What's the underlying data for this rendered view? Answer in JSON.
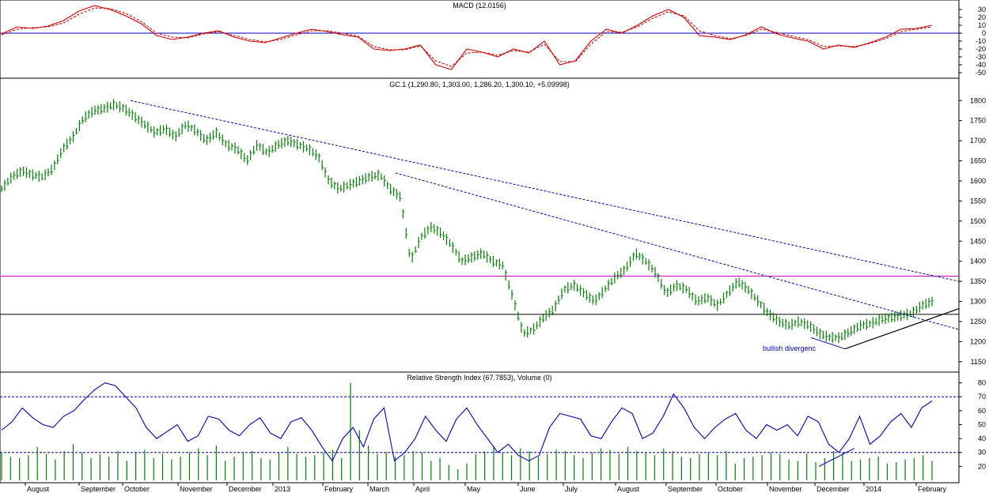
{
  "chart_data": [
    {
      "type": "line",
      "title": "MACD (12.0156)",
      "ylim": [
        -55,
        40
      ],
      "y_ticks": [
        30,
        20,
        10,
        0,
        -10,
        -20,
        -30,
        -40,
        -50
      ],
      "zero_line": 0,
      "series": [
        {
          "values": [
            -1,
            8,
            6,
            9,
            16,
            28,
            35,
            30,
            22,
            12,
            -3,
            -8,
            -5,
            0,
            3,
            -5,
            -10,
            -12,
            -6,
            0,
            5,
            2,
            -2,
            -5,
            -20,
            -22,
            -20,
            -15,
            -40,
            -46,
            -20,
            -24,
            -30,
            -20,
            -25,
            -10,
            -40,
            -35,
            -10,
            5,
            0,
            10,
            22,
            30,
            20,
            -3,
            -5,
            -8,
            -2,
            8,
            -1,
            -6,
            -10,
            -20,
            -15,
            -18,
            -12,
            -5,
            5,
            6,
            10
          ]
        },
        {
          "values": [
            -2,
            5,
            7,
            8,
            13,
            24,
            32,
            31,
            25,
            15,
            0,
            -5,
            -6,
            -1,
            2,
            -3,
            -8,
            -11,
            -8,
            -2,
            3,
            3,
            0,
            -4,
            -17,
            -21,
            -21,
            -16,
            -35,
            -42,
            -25,
            -24,
            -28,
            -22,
            -24,
            -14,
            -36,
            -36,
            -14,
            2,
            1,
            8,
            19,
            27,
            22,
            3,
            -3,
            -7,
            -3,
            5,
            1,
            -4,
            -8,
            -17,
            -16,
            -17,
            -13,
            -7,
            2,
            5,
            8
          ]
        }
      ]
    },
    {
      "type": "line",
      "title": "GC.1 (1,290.80, 1,303.00, 1,286.20, 1,300.10, +5.09998)",
      "ylim": [
        1130,
        1830
      ],
      "y_ticks": [
        1800,
        1750,
        1700,
        1650,
        1600,
        1550,
        1500,
        1450,
        1400,
        1350,
        1300,
        1250,
        1200,
        1150
      ],
      "horizontal_levels": [
        1363,
        1268
      ],
      "annotation": "bullish divergenc",
      "series": [
        {
          "values": [
            1580,
            1610,
            1625,
            1615,
            1610,
            1630,
            1680,
            1710,
            1755,
            1775,
            1780,
            1790,
            1780,
            1760,
            1740,
            1720,
            1730,
            1710,
            1740,
            1725,
            1700,
            1720,
            1690,
            1680,
            1650,
            1690,
            1670,
            1690,
            1700,
            1690,
            1680,
            1660,
            1600,
            1580,
            1590,
            1600,
            1610,
            1615,
            1580,
            1560,
            1400,
            1460,
            1485,
            1470,
            1440,
            1400,
            1410,
            1420,
            1400,
            1390,
            1310,
            1220,
            1230,
            1260,
            1280,
            1330,
            1340,
            1320,
            1300,
            1330,
            1360,
            1380,
            1420,
            1400,
            1370,
            1320,
            1340,
            1330,
            1300,
            1310,
            1290,
            1320,
            1350,
            1330,
            1300,
            1270,
            1250,
            1240,
            1250,
            1240,
            1220,
            1210,
            1210,
            1225,
            1240,
            1245,
            1255,
            1260,
            1265,
            1270,
            1290,
            1300
          ]
        }
      ],
      "trendlines": [
        {
          "from": [
            0,
            1800
          ],
          "to": [
            1,
            1350
          ],
          "style": "dashed"
        },
        {
          "from": [
            0,
            1620
          ],
          "to": [
            1,
            1230
          ],
          "style": "dashed"
        },
        {
          "from": [
            0,
            1182
          ],
          "to": [
            1,
            1282
          ],
          "style": "solid"
        },
        {
          "from": [
            0,
            1210
          ],
          "to": [
            1,
            1182
          ],
          "style": "solid"
        }
      ]
    },
    {
      "type": "line",
      "title": "Relative Strength Index (67.7853), Volume (0)",
      "ylim": [
        10,
        86
      ],
      "y_ticks": [
        80,
        70,
        60,
        50,
        40,
        30,
        20
      ],
      "reference_lines": [
        70,
        30
      ],
      "series": [
        {
          "values": [
            46,
            52,
            62,
            55,
            50,
            48,
            56,
            60,
            68,
            75,
            80,
            78,
            70,
            62,
            48,
            40,
            45,
            50,
            38,
            42,
            56,
            54,
            46,
            42,
            50,
            55,
            44,
            40,
            52,
            55,
            46,
            34,
            24,
            40,
            48,
            34,
            54,
            62,
            24,
            30,
            40,
            56,
            46,
            38,
            54,
            62,
            50,
            40,
            30,
            36,
            28,
            24,
            28,
            48,
            58,
            56,
            54,
            42,
            40,
            52,
            62,
            58,
            40,
            44,
            56,
            72,
            62,
            48,
            40,
            48,
            54,
            58,
            46,
            40,
            50,
            46,
            50,
            42,
            56,
            52,
            36,
            30,
            40,
            56,
            36,
            42,
            52,
            58,
            48,
            62,
            67
          ]
        }
      ],
      "volume_bars": [
        30,
        27,
        26,
        28,
        34,
        29,
        25,
        31,
        36,
        30,
        26,
        29,
        27,
        31,
        24,
        30,
        32,
        26,
        29,
        25,
        27,
        30,
        33,
        28,
        35,
        24,
        27,
        30,
        31,
        26,
        25,
        30,
        34,
        29,
        27,
        28,
        30,
        32,
        26,
        80,
        46,
        35,
        29,
        30,
        27,
        28,
        31,
        30,
        24,
        26,
        21,
        18,
        22,
        29,
        31,
        34,
        30,
        28,
        33,
        31,
        27,
        29,
        32,
        31,
        28,
        26,
        30,
        33,
        32,
        29,
        34,
        31,
        30,
        28,
        33,
        31,
        27,
        26,
        29,
        30,
        28,
        31,
        22,
        26,
        27,
        28,
        30,
        29,
        25,
        24,
        29,
        23,
        26,
        31,
        30,
        24,
        25,
        26,
        27,
        22,
        23,
        25,
        26,
        28,
        24
      ]
    }
  ],
  "x_axis": {
    "labels": [
      "August",
      "September",
      "October",
      "November",
      "December",
      "2013",
      "February",
      "March",
      "April",
      "May",
      "June",
      "July",
      "August",
      "September",
      "October",
      "November",
      "December",
      "2014",
      "February"
    ]
  },
  "colors": {
    "macd_line": "#d40000",
    "price_bars": "#008000",
    "rsi_line": "#0000c0",
    "volume_bars": "#008000",
    "resistance_line": "#cc00cc",
    "trendline_blue": "#0000c0",
    "axis_text": "#000000"
  }
}
